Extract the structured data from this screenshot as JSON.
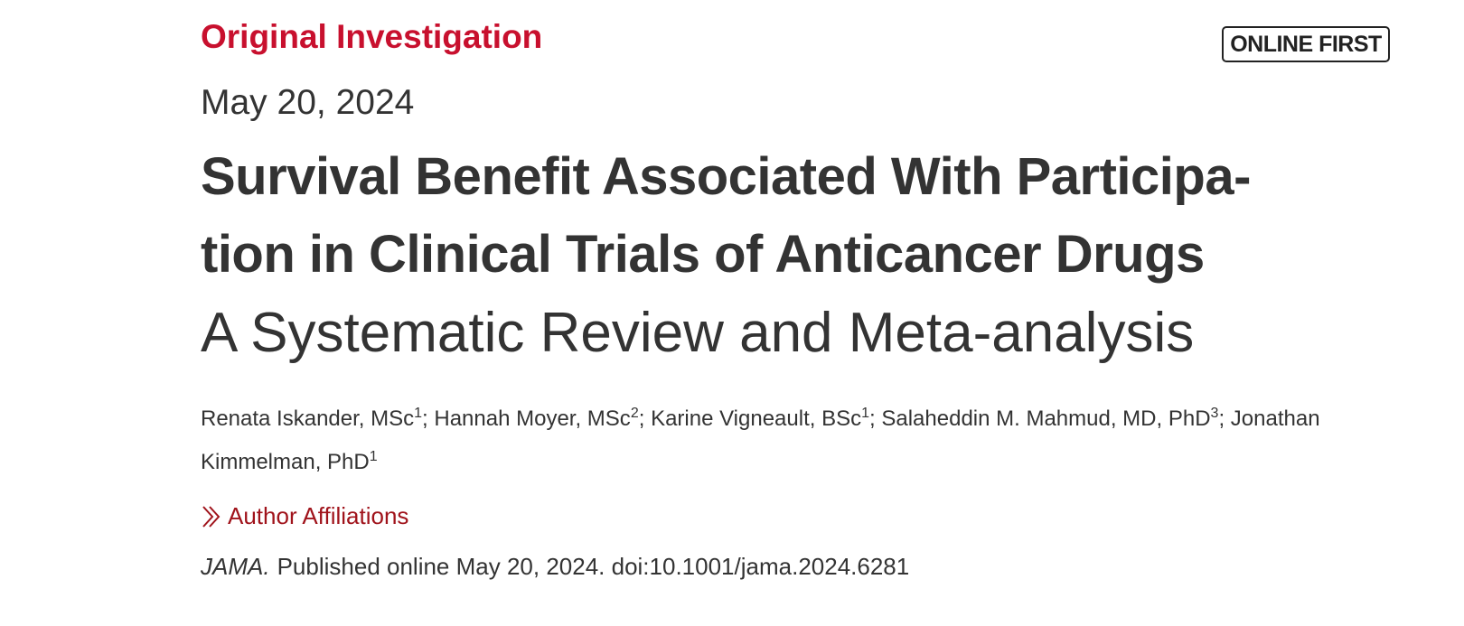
{
  "header": {
    "label": "Original Investigation",
    "badge": "ONLINE FIRST",
    "date": "May 20, 2024"
  },
  "title": {
    "lines": [
      "Survival Benefit Associated With Participa-",
      "tion in Clinical Trials of Anticancer Drugs"
    ],
    "subtitle": "A Systematic Review and Meta-analysis"
  },
  "authors": {
    "separator": ";",
    "list": [
      {
        "name": "Renata Iskander, MSc",
        "affiliation": "1"
      },
      {
        "name": "Hannah Moyer, MSc",
        "affiliation": "2"
      },
      {
        "name": "Karine Vigneault, BSc",
        "affiliation": "1"
      },
      {
        "name": "Salaheddin M. Mahmud, MD, PhD",
        "affiliation": "3"
      },
      {
        "name": "Jonathan Kimmelman, PhD",
        "affiliation": "1"
      }
    ]
  },
  "affiliations_link": "Author Affiliations",
  "citation": {
    "journal": "JAMA.",
    "text": "Published online May 20, 2024. doi:10.1001/jama.2024.6281"
  }
}
